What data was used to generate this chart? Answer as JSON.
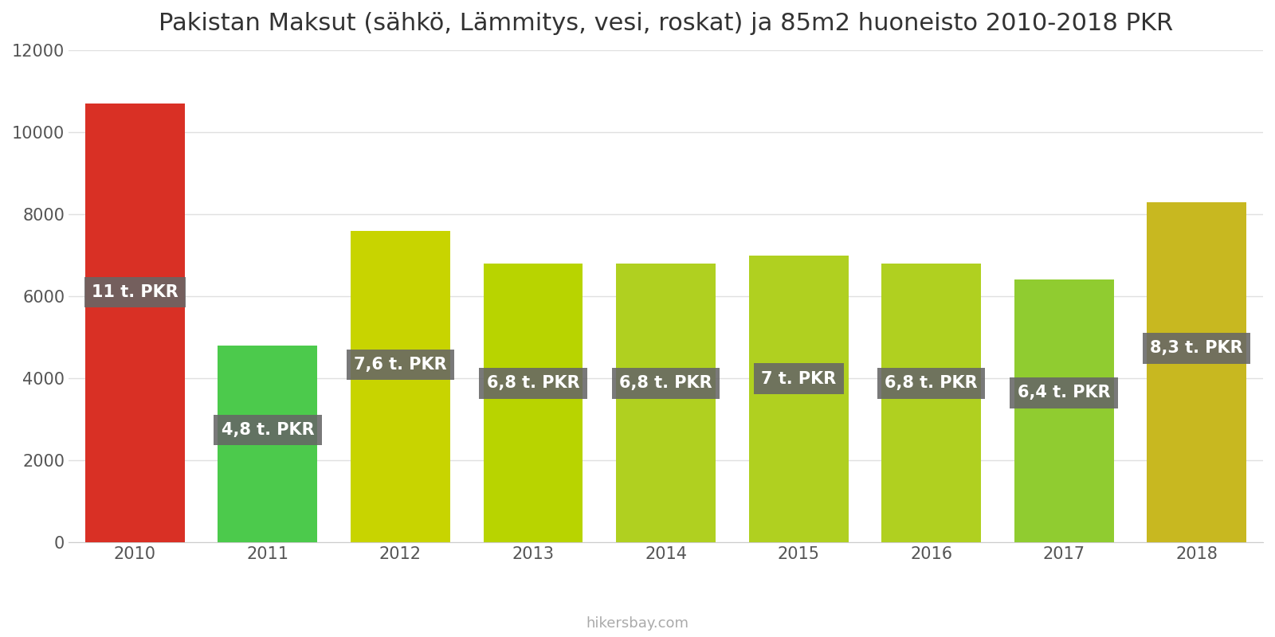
{
  "title": "Pakistan Maksut (sähkö, Lämmitys, vesi, roskat) ja 85m2 huoneisto 2010-2018 PKR",
  "years": [
    2010,
    2011,
    2012,
    2013,
    2014,
    2015,
    2016,
    2017,
    2018
  ],
  "values": [
    10700,
    4800,
    7600,
    6800,
    6800,
    7000,
    6800,
    6400,
    8300
  ],
  "labels": [
    "11 t. PKR",
    "4,8 t. PKR",
    "7,6 t. PKR",
    "6,8 t. PKR",
    "6,8 t. PKR",
    "7 t. PKR",
    "6,8 t. PKR",
    "6,4 t. PKR",
    "8,3 t. PKR"
  ],
  "colors": [
    "#d93025",
    "#4cca4c",
    "#c8d400",
    "#b8d400",
    "#b0d020",
    "#b0d020",
    "#b0d020",
    "#90cc30",
    "#c8b820"
  ],
  "ylim": [
    0,
    12000
  ],
  "yticks": [
    0,
    2000,
    4000,
    6000,
    8000,
    10000,
    12000
  ],
  "watermark": "hikersbay.com",
  "label_bg_color": "#666666",
  "label_text_color": "#ffffff",
  "label_font_size": 15,
  "title_font_size": 22,
  "tick_font_size": 15,
  "background_color": "#ffffff",
  "grid_color": "#e0e0e0",
  "bar_width": 0.75
}
